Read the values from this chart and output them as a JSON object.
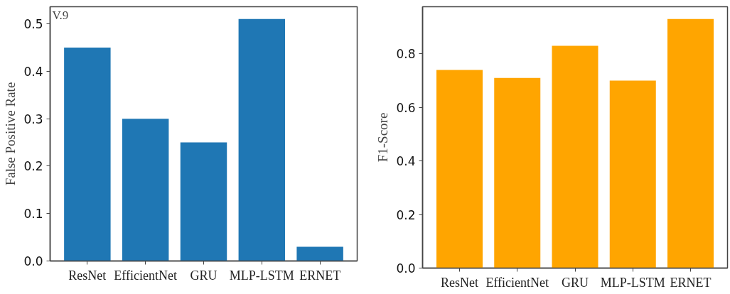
{
  "chart_data": [
    {
      "type": "bar",
      "ylabel": "False Positive Rate",
      "categories": [
        "ResNet",
        "EfficientNet",
        "GRU",
        "MLP-LSTM",
        "ERNET"
      ],
      "values": [
        0.45,
        0.3,
        0.25,
        0.51,
        0.03
      ],
      "color": "#1f77b4",
      "ylim": [
        0,
        0.536
      ],
      "yticks": [
        {
          "value": 0,
          "label": "0.0"
        },
        {
          "value": 0.1,
          "label": "0.1"
        },
        {
          "value": 0.2,
          "label": "0.2"
        },
        {
          "value": 0.3,
          "label": "0.3"
        },
        {
          "value": 0.4,
          "label": "0.4"
        },
        {
          "value": 0.5,
          "label": "0.5"
        }
      ],
      "annotations": [
        "V.9"
      ],
      "grid": false
    },
    {
      "type": "bar",
      "ylabel": "F1-Score",
      "categories": [
        "ResNet",
        "EfficientNet",
        "GRU",
        "MLP-LSTM",
        "ERNET"
      ],
      "values": [
        0.74,
        0.71,
        0.83,
        0.7,
        0.93
      ],
      "color": "#ffa500",
      "ylim": [
        0,
        0.976
      ],
      "yticks": [
        {
          "value": 0,
          "label": "0.0"
        },
        {
          "value": 0.2,
          "label": "0.2"
        },
        {
          "value": 0.4,
          "label": "0.4"
        },
        {
          "value": 0.6,
          "label": "0.6"
        },
        {
          "value": 0.8,
          "label": "0.8"
        }
      ],
      "grid": false
    }
  ]
}
